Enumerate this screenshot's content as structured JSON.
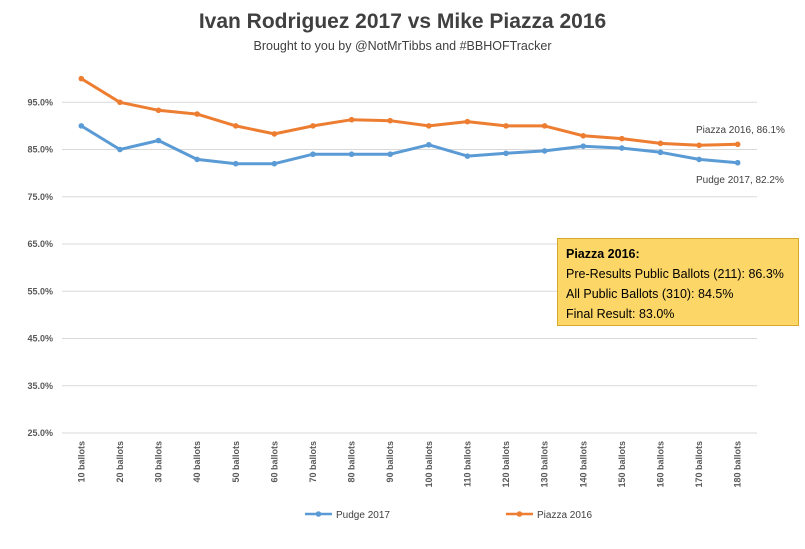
{
  "chart_data": {
    "type": "line",
    "title": "Ivan Rodriguez 2017 vs Mike Piazza 2016",
    "subtitle": "Brought to you by @NotMrTibbs and #BBHOFTracker",
    "categories": [
      "10 ballots",
      "20 ballots",
      "30 ballots",
      "40 ballots",
      "50 ballots",
      "60 ballots",
      "70 ballots",
      "80 ballots",
      "90 ballots",
      "100 ballots",
      "110 ballots",
      "120 ballots",
      "130 ballots",
      "140 ballots",
      "150 ballots",
      "160 ballots",
      "170 ballots",
      "180 ballots"
    ],
    "series": [
      {
        "name": "Pudge 2017",
        "color": "#5b9bd5",
        "values": [
          90.0,
          85.0,
          86.9,
          82.9,
          82.0,
          82.0,
          84.0,
          84.0,
          84.0,
          86.0,
          83.6,
          84.2,
          84.7,
          85.7,
          85.3,
          84.4,
          82.9,
          82.2
        ]
      },
      {
        "name": "Piazza 2016",
        "color": "#ed7d31",
        "values": [
          100.0,
          95.0,
          93.3,
          92.5,
          90.0,
          88.3,
          90.0,
          91.3,
          91.1,
          90.0,
          90.9,
          90.0,
          90.0,
          87.9,
          87.3,
          86.3,
          85.9,
          86.1
        ]
      }
    ],
    "yticks": [
      "25.0%",
      "35.0%",
      "45.0%",
      "55.0%",
      "65.0%",
      "75.0%",
      "85.0%",
      "95.0%"
    ],
    "ylim": [
      25,
      105
    ],
    "grid": true,
    "legend": "bottom",
    "annotations": {
      "piazza_end": "Piazza 2016, 86.1%",
      "pudge_end": "Pudge 2017, 82.2%"
    }
  },
  "note": {
    "header": "Piazza 2016:",
    "line1": "Pre-Results Public Ballots (211): 86.3%",
    "line2": "All Public Ballots (310): 84.5%",
    "line3": "Final Result: 83.0%"
  }
}
